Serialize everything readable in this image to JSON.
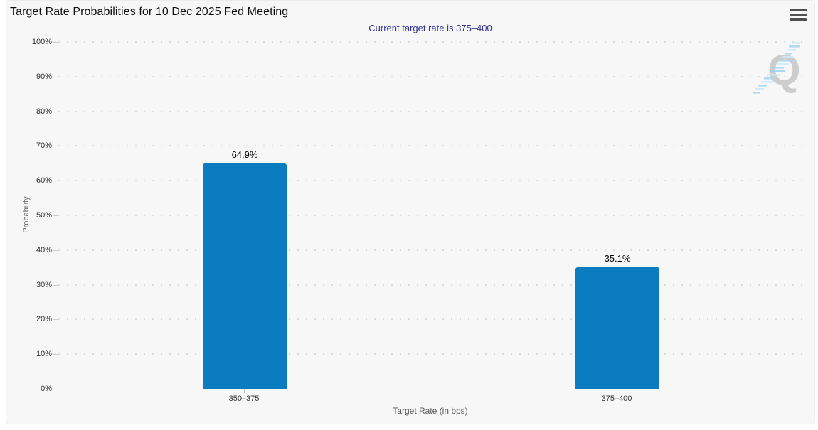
{
  "chart_data": {
    "type": "bar",
    "title": "Target Rate Probabilities for 10 Dec 2025 Fed Meeting",
    "subtitle": "Current target rate is 375–400",
    "categories": [
      "350–375",
      "375–400"
    ],
    "values": [
      64.9,
      35.1
    ],
    "data_labels": [
      "64.9%",
      "35.1%"
    ],
    "xlabel": "Target Rate (in bps)",
    "ylabel": "Probability",
    "ylim": [
      0,
      100
    ],
    "ytick_step": 10,
    "ytick_labels": [
      "0%",
      "10%",
      "20%",
      "30%",
      "40%",
      "50%",
      "60%",
      "70%",
      "80%",
      "90%",
      "100%"
    ],
    "legend": "none",
    "grid": "horizontal-dotted",
    "colors": {
      "bar": "#0a7cbf",
      "subtitle": "#333399",
      "background": "#f7f7f7",
      "grid_dots": "#dcdcdc",
      "axis_line": "#cccccc",
      "x_axis_line": "#8a8a8a",
      "tick_label": "#333333",
      "axis_title": "#666666"
    },
    "watermark": "quikstrike-q-logo"
  },
  "icons": {
    "menu": "hamburger-menu-icon"
  }
}
